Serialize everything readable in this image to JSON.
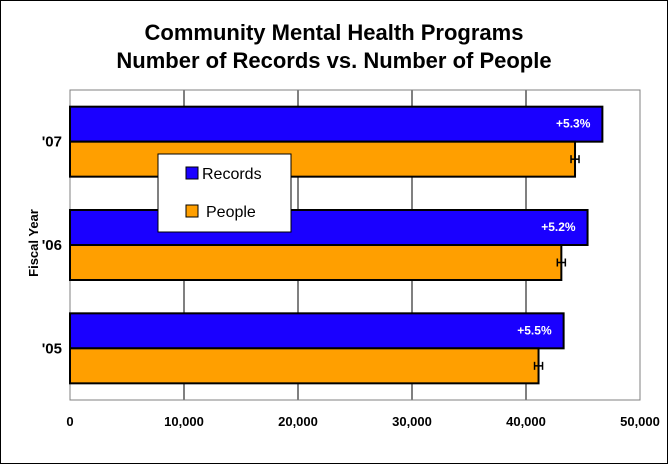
{
  "chart_data": {
    "type": "bar",
    "orientation": "horizontal",
    "title": "Community Mental Health Programs",
    "subtitle": "Number of Records vs. Number of People",
    "xlabel": "",
    "ylabel": "Fiscal Year",
    "xlim": [
      0,
      50000
    ],
    "xticks": [
      0,
      10000,
      20000,
      30000,
      40000,
      50000
    ],
    "xtick_labels": [
      "0",
      "10,000",
      "20,000",
      "30,000",
      "40,000",
      "50,000"
    ],
    "categories": [
      "'07",
      "'06",
      "'05"
    ],
    "series": [
      {
        "name": "Records",
        "color": "#1a00ff",
        "values": [
          46700,
          45400,
          43300
        ],
        "data_labels": [
          "+5.3%",
          "+5.2%",
          "+5.5%"
        ]
      },
      {
        "name": "People",
        "color": "#ff9f00",
        "values": [
          44300,
          43100,
          41100
        ],
        "error_bars": true
      }
    ],
    "grid": "vertical",
    "legend": {
      "position": "upper-left inside plot",
      "entries": [
        "Records",
        "People"
      ]
    }
  }
}
